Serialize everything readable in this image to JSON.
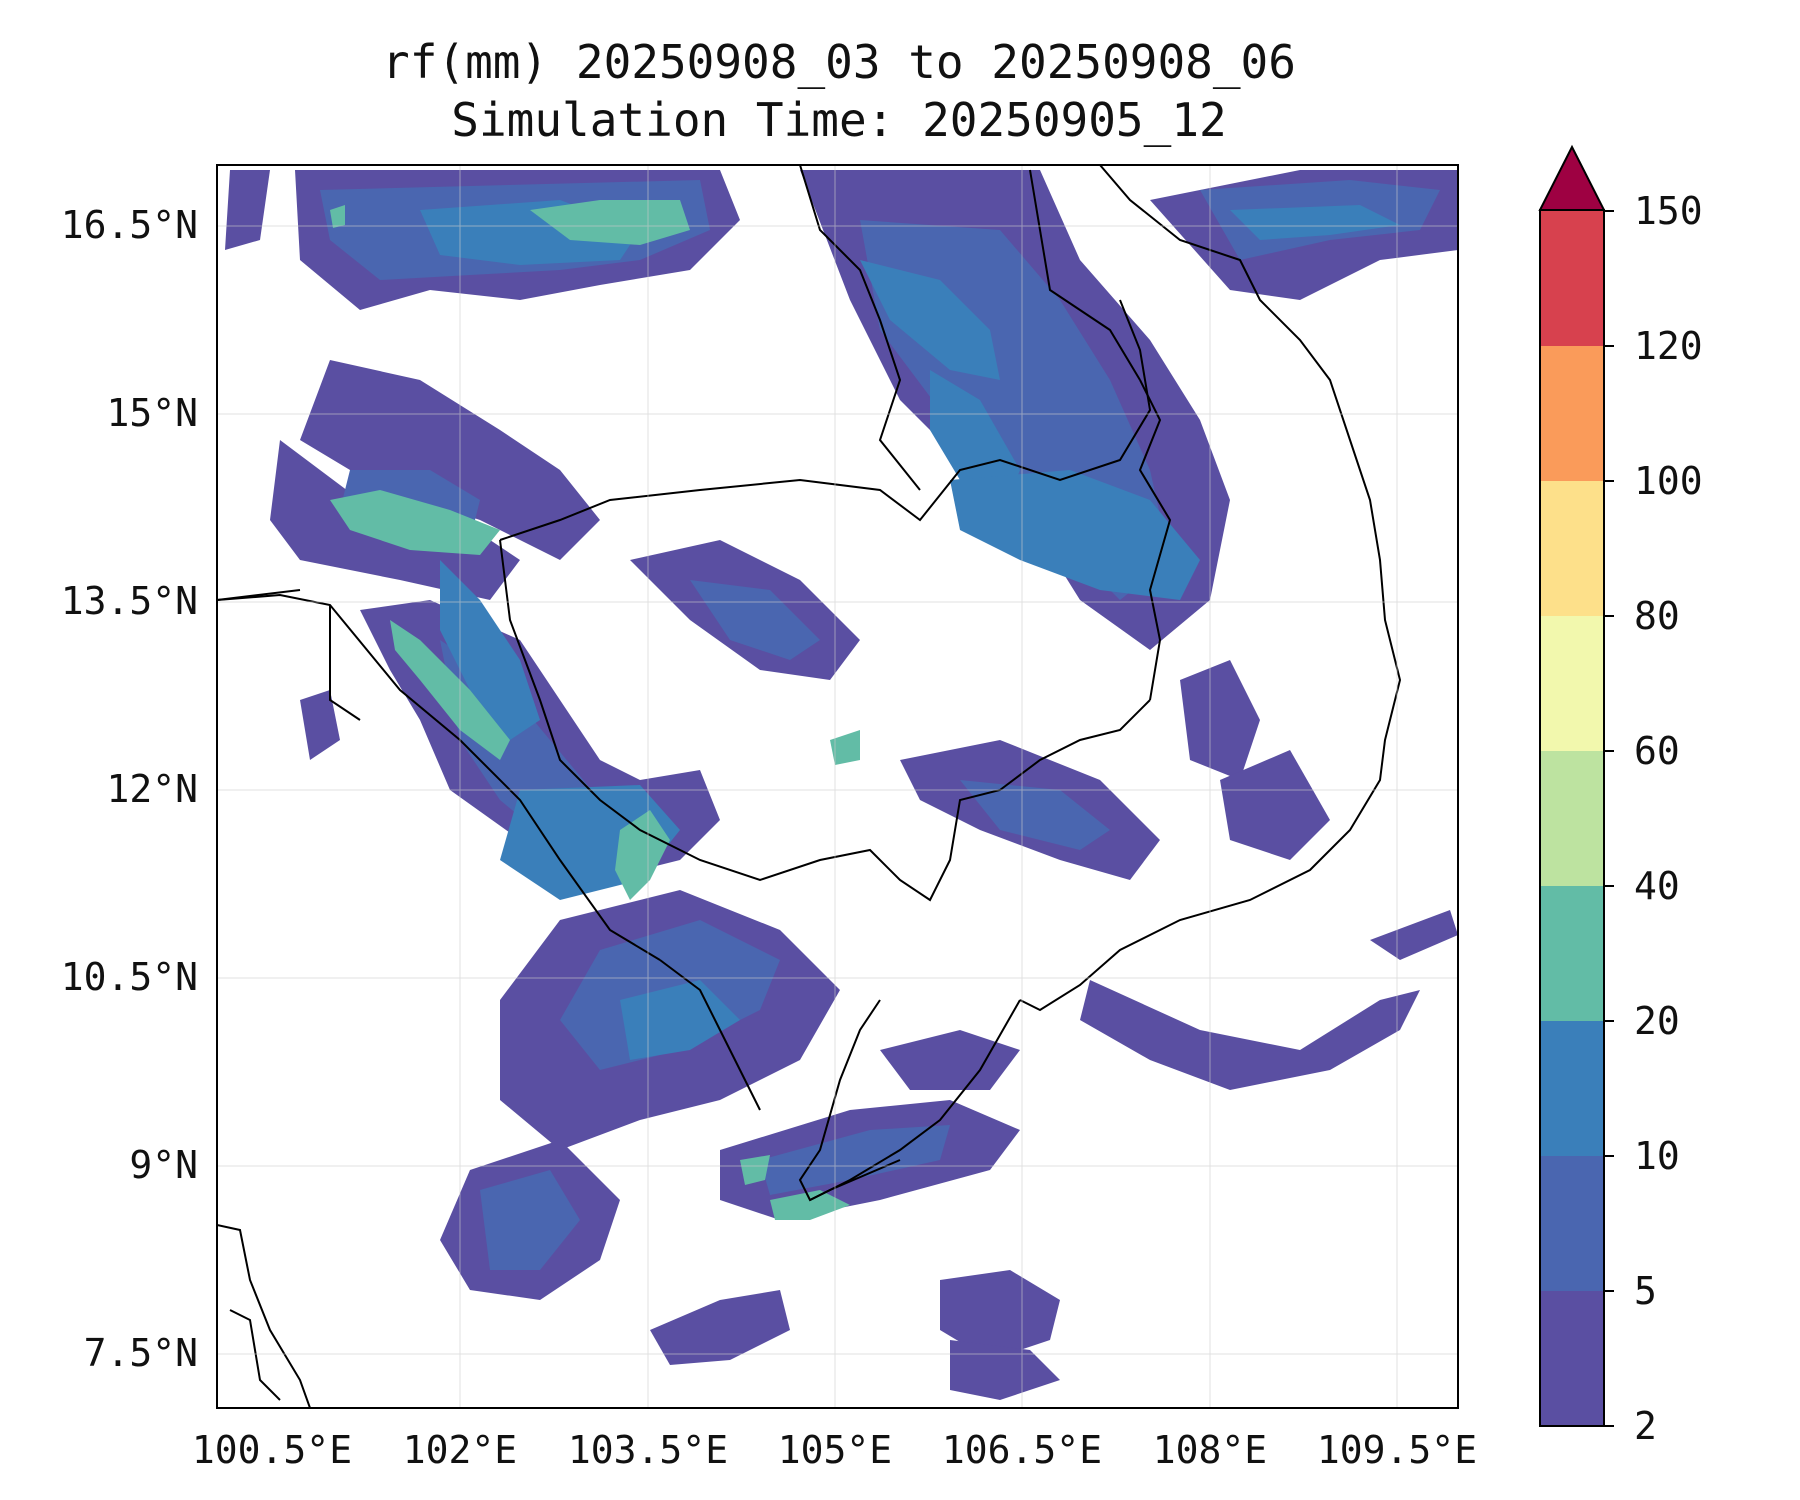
{
  "figure": {
    "title_line1": "rf(mm) 20250908_03 to 20250908_06",
    "title_line2": "Simulation Time: 20250905_12"
  },
  "map": {
    "lon_range": [
      100.0,
      109.9
    ],
    "lat_range": [
      7.0,
      16.9
    ],
    "lon_ticks": [
      "100.5°E",
      "102°E",
      "103.5°E",
      "105°E",
      "106.5°E",
      "108°E",
      "109.5°E"
    ],
    "lat_ticks": [
      "16.5°N",
      "15°N",
      "13.5°N",
      "12°N",
      "10.5°N",
      "9°N",
      "7.5°N"
    ],
    "gridlines": true
  },
  "colorbar": {
    "levels": [
      "2",
      "5",
      "10",
      "20",
      "40",
      "60",
      "80",
      "100",
      "120",
      "150"
    ],
    "colors": [
      "#5a4fa2",
      "#4a66b0",
      "#3a7fba",
      "#62bca6",
      "#bde3a0",
      "#f2f8ad",
      "#fde08a",
      "#fa9b5a",
      "#d7414e"
    ],
    "extend_color": "#9e0142",
    "extend": "max"
  }
}
